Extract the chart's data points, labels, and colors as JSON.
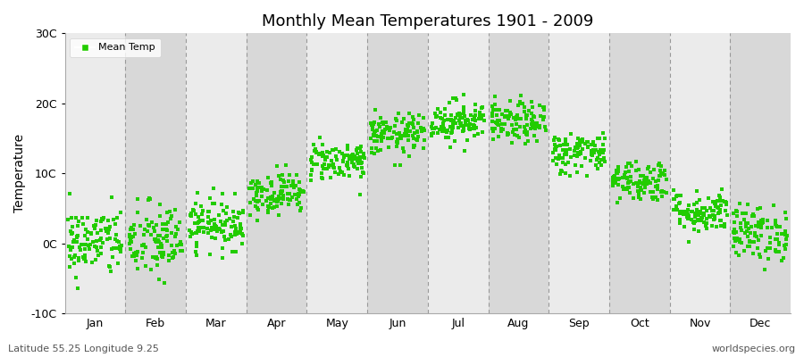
{
  "title": "Monthly Mean Temperatures 1901 - 2009",
  "ylabel": "Temperature",
  "ylim": [
    -10,
    30
  ],
  "yticks": [
    -10,
    0,
    10,
    20,
    30
  ],
  "ytick_labels": [
    "-10C",
    "0C",
    "10C",
    "20C",
    "30C"
  ],
  "months": [
    "Jan",
    "Feb",
    "Mar",
    "Apr",
    "May",
    "Jun",
    "Jul",
    "Aug",
    "Sep",
    "Oct",
    "Nov",
    "Dec"
  ],
  "month_means": [
    0.2,
    0.3,
    2.8,
    7.2,
    11.8,
    15.5,
    17.5,
    17.2,
    13.0,
    9.0,
    4.5,
    1.5
  ],
  "month_stds": [
    2.5,
    2.8,
    1.8,
    1.5,
    1.4,
    1.5,
    1.5,
    1.5,
    1.5,
    1.5,
    1.5,
    2.0
  ],
  "n_years": 109,
  "dot_color": "#22cc00",
  "band_color_light": "#ebebeb",
  "band_color_dark": "#d8d8d8",
  "fig_bg": "#ffffff",
  "legend_label": "Mean Temp",
  "subtitle_left": "Latitude 55.25 Longitude 9.25",
  "subtitle_right": "worldspecies.org",
  "marker_size": 5,
  "seed": 42,
  "dashed_color": "#999999",
  "title_fontsize": 13,
  "axis_fontsize": 9,
  "ylabel_fontsize": 10
}
